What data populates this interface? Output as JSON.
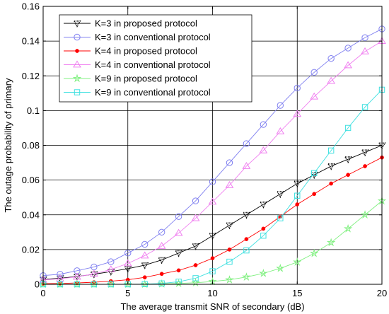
{
  "chart_data": {
    "type": "line",
    "xlabel": "The average transmit SNR of secondary (dB)",
    "ylabel": "The outage probability of primary",
    "xlim": [
      0,
      20
    ],
    "ylim": [
      0,
      0.16
    ],
    "xticks": [
      "0",
      "5",
      "10",
      "15",
      "20"
    ],
    "yticks": [
      "0",
      "0.02",
      "0.04",
      "0.06",
      "0.08",
      "0.1",
      "0.12",
      "0.14",
      "0.16"
    ],
    "grid": true,
    "legend_position": "top-left",
    "x": [
      0,
      1,
      2,
      3,
      4,
      5,
      6,
      7,
      8,
      9,
      10,
      11,
      12,
      13,
      14,
      15,
      16,
      17,
      18,
      19,
      20
    ],
    "series": [
      {
        "name": "K=3 in proposed protocol",
        "color": "#000000",
        "marker": "dotted-triangle",
        "values": [
          0.0028,
          0.0035,
          0.0045,
          0.0058,
          0.0073,
          0.009,
          0.011,
          0.014,
          0.018,
          0.022,
          0.028,
          0.034,
          0.04,
          0.046,
          0.052,
          0.058,
          0.063,
          0.068,
          0.072,
          0.076,
          0.08
        ]
      },
      {
        "name": "K=3 in conventional protocol",
        "color": "#8080f0",
        "marker": "circle",
        "values": [
          0.005,
          0.0058,
          0.0078,
          0.01,
          0.013,
          0.018,
          0.023,
          0.03,
          0.039,
          0.048,
          0.059,
          0.07,
          0.081,
          0.092,
          0.103,
          0.113,
          0.122,
          0.13,
          0.136,
          0.142,
          0.147
        ]
      },
      {
        "name": "K=4 in proposed protocol",
        "color": "#ff0000",
        "marker": "dot",
        "values": [
          0.0003,
          0.0005,
          0.0008,
          0.0012,
          0.0018,
          0.0026,
          0.004,
          0.006,
          0.008,
          0.011,
          0.015,
          0.02,
          0.026,
          0.032,
          0.039,
          0.046,
          0.052,
          0.058,
          0.063,
          0.068,
          0.073
        ]
      },
      {
        "name": "K=4 in conventional protocol",
        "color": "#f080f0",
        "marker": "triangle",
        "values": [
          0.0025,
          0.0032,
          0.0043,
          0.006,
          0.0085,
          0.012,
          0.0165,
          0.022,
          0.0295,
          0.038,
          0.0475,
          0.057,
          0.068,
          0.077,
          0.088,
          0.098,
          0.108,
          0.117,
          0.126,
          0.134,
          0.14
        ]
      },
      {
        "name": "K=9 in proposed protocol",
        "color": "#80f080",
        "marker": "star",
        "values": [
          0.0,
          0.0,
          0.0,
          0.0,
          0.0,
          0.0,
          0.0,
          0.0002,
          0.0005,
          0.0009,
          0.0016,
          0.0026,
          0.0042,
          0.0063,
          0.0092,
          0.0128,
          0.0178,
          0.024,
          0.032,
          0.04,
          0.048
        ]
      },
      {
        "name": "K=9 in conventional protocol",
        "color": "#40e0e0",
        "marker": "square",
        "values": [
          0.0,
          0.0,
          0.0,
          0.0,
          0.0,
          0.0,
          0.0001,
          0.0005,
          0.0015,
          0.0035,
          0.0075,
          0.013,
          0.0195,
          0.028,
          0.038,
          0.051,
          0.064,
          0.077,
          0.09,
          0.102,
          0.112
        ]
      }
    ]
  }
}
